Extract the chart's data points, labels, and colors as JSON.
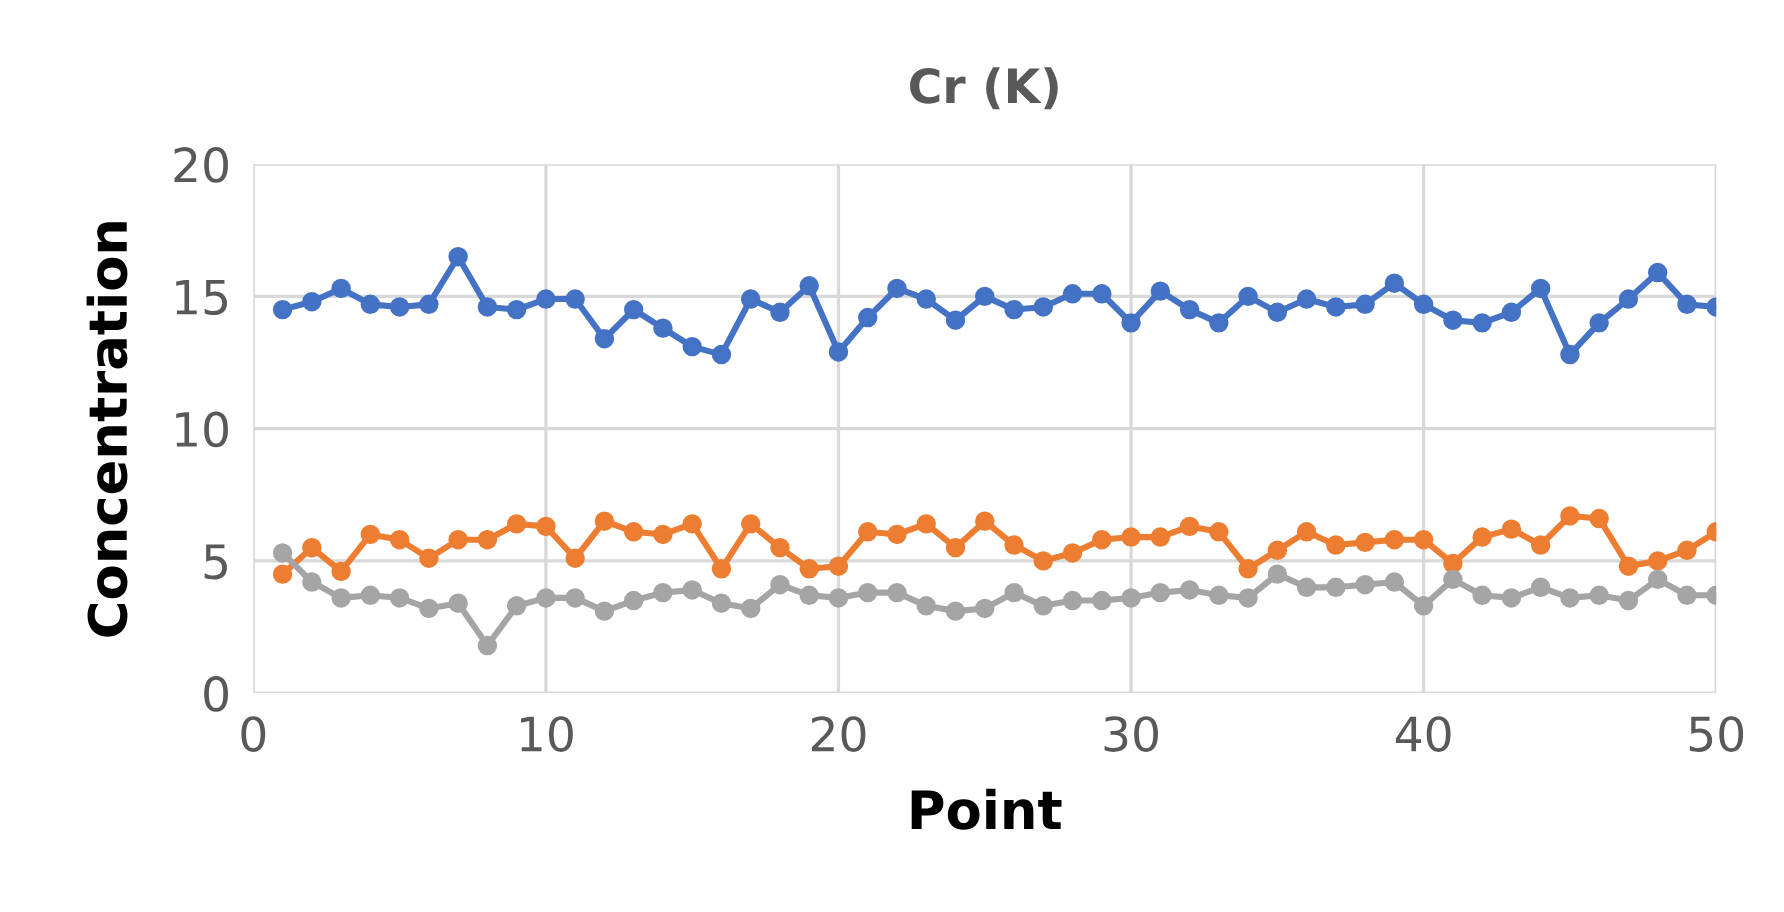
{
  "chart_data": {
    "type": "line",
    "title": "Cr (K)",
    "xlabel": "Point",
    "ylabel": "Concentration",
    "x": [
      1,
      2,
      3,
      4,
      5,
      6,
      7,
      8,
      9,
      10,
      11,
      12,
      13,
      14,
      15,
      16,
      17,
      18,
      19,
      20,
      21,
      22,
      23,
      24,
      25,
      26,
      27,
      28,
      29,
      30,
      31,
      32,
      33,
      34,
      35,
      36,
      37,
      38,
      39,
      40,
      41,
      42,
      43,
      44,
      45,
      46,
      47,
      48,
      49,
      50
    ],
    "series": [
      {
        "color": "#4472c4",
        "values": [
          14.5,
          14.8,
          15.3,
          14.7,
          14.6,
          14.7,
          16.5,
          14.6,
          14.5,
          14.9,
          14.9,
          13.4,
          14.5,
          13.8,
          13.1,
          12.8,
          14.9,
          14.4,
          15.4,
          12.9,
          14.2,
          15.3,
          14.9,
          14.1,
          15.0,
          14.5,
          14.6,
          15.1,
          15.1,
          14.0,
          15.2,
          14.5,
          14.0,
          15.0,
          14.4,
          14.9,
          14.6,
          14.7,
          15.5,
          14.7,
          14.1,
          14.0,
          14.4,
          15.3,
          12.8,
          14.0,
          14.9,
          15.9,
          14.7,
          14.6
        ]
      },
      {
        "color": "#ed7d31",
        "values": [
          4.5,
          5.5,
          4.6,
          6.0,
          5.8,
          5.1,
          5.8,
          5.8,
          6.4,
          6.3,
          5.1,
          6.5,
          6.1,
          6.0,
          6.4,
          4.7,
          6.4,
          5.5,
          4.7,
          4.8,
          6.1,
          6.0,
          6.4,
          5.5,
          6.5,
          5.6,
          5.0,
          5.3,
          5.8,
          5.9,
          5.9,
          6.3,
          6.1,
          4.7,
          5.4,
          6.1,
          5.6,
          5.7,
          5.8,
          5.8,
          4.9,
          5.9,
          6.2,
          5.6,
          6.7,
          6.6,
          4.8,
          5.0,
          5.4,
          6.1
        ]
      },
      {
        "color": "#a5a5a5",
        "values": [
          5.3,
          4.2,
          3.6,
          3.7,
          3.6,
          3.2,
          3.4,
          1.8,
          3.3,
          3.6,
          3.6,
          3.1,
          3.5,
          3.8,
          3.9,
          3.4,
          3.2,
          4.1,
          3.7,
          3.6,
          3.8,
          3.8,
          3.3,
          3.1,
          3.2,
          3.8,
          3.3,
          3.5,
          3.5,
          3.6,
          3.8,
          3.9,
          3.7,
          3.6,
          4.5,
          4.0,
          4.0,
          4.1,
          4.2,
          3.3,
          4.3,
          3.7,
          3.6,
          4.0,
          3.6,
          3.7,
          3.5,
          4.3,
          3.7,
          3.7
        ]
      }
    ],
    "xlim": [
      0,
      50
    ],
    "xticks": [
      0,
      10,
      20,
      30,
      40,
      50
    ],
    "ylim": [
      0,
      20
    ],
    "yticks": [
      0,
      5,
      10,
      15,
      20
    ],
    "grid": true,
    "marker": "circle",
    "line_style": "solid"
  }
}
